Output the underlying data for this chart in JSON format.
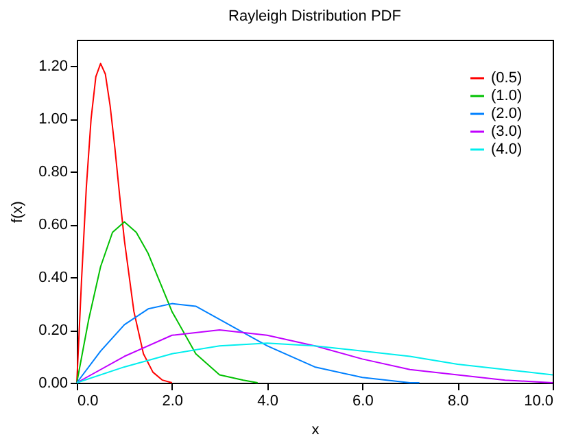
{
  "chart_data": {
    "type": "line",
    "title": "Rayleigh Distribution PDF",
    "xlabel": "x",
    "ylabel": "f(x)",
    "xlim": [
      0,
      10
    ],
    "xticks": [
      {
        "value": 0,
        "label": "0.0"
      },
      {
        "value": 2,
        "label": "2.0"
      },
      {
        "value": 4,
        "label": "4.0"
      },
      {
        "value": 6,
        "label": "6.0"
      },
      {
        "value": 8,
        "label": "8.0"
      },
      {
        "value": 10,
        "label": "10.0"
      }
    ],
    "ylim": [
      0,
      1.3
    ],
    "yticks": [
      {
        "value": 0,
        "label": "0.00"
      },
      {
        "value": 0.2,
        "label": "0.20"
      },
      {
        "value": 0.4,
        "label": "0.40"
      },
      {
        "value": 0.6,
        "label": "0.60"
      },
      {
        "value": 0.8,
        "label": "0.80"
      },
      {
        "value": 1,
        "label": "1.00"
      },
      {
        "value": 1.2,
        "label": "1.20"
      }
    ],
    "legend": "top right",
    "series": [
      {
        "name": "(0.5)",
        "color": "#ff0000",
        "x": [
          0,
          0.1,
          0.2,
          0.3,
          0.4,
          0.5,
          0.6,
          0.7,
          0.8,
          0.9,
          1.0,
          1.2,
          1.4,
          1.6,
          1.8,
          2.0
        ],
        "values": [
          0,
          0.39,
          0.74,
          1.0,
          1.16,
          1.21,
          1.17,
          1.05,
          0.89,
          0.71,
          0.54,
          0.27,
          0.11,
          0.04,
          0.01,
          0
        ]
      },
      {
        "name": "(1.0)",
        "color": "#00c000",
        "x": [
          0,
          0.25,
          0.5,
          0.75,
          1,
          1.25,
          1.5,
          1.75,
          2,
          2.5,
          3,
          3.5,
          3.8
        ],
        "values": [
          0,
          0.24,
          0.44,
          0.57,
          0.61,
          0.57,
          0.49,
          0.38,
          0.27,
          0.11,
          0.03,
          0.01,
          0
        ]
      },
      {
        "name": "(2.0)",
        "color": "#0080ff",
        "x": [
          0,
          0.5,
          1,
          1.5,
          2,
          2.5,
          3,
          3.5,
          4,
          5,
          6,
          7,
          7.2
        ],
        "values": [
          0,
          0.12,
          0.22,
          0.28,
          0.3,
          0.29,
          0.24,
          0.19,
          0.14,
          0.06,
          0.02,
          0,
          0
        ]
      },
      {
        "name": "(3.0)",
        "color": "#c000ff",
        "x": [
          0,
          1,
          2,
          3,
          4,
          5,
          6,
          7,
          8,
          9,
          10
        ],
        "values": [
          0,
          0.1,
          0.18,
          0.2,
          0.18,
          0.14,
          0.09,
          0.05,
          0.03,
          0.01,
          0
        ]
      },
      {
        "name": "(4.0)",
        "color": "#00eeee",
        "x": [
          0,
          1,
          2,
          3,
          4,
          5,
          6,
          7,
          8,
          9,
          10
        ],
        "values": [
          0,
          0.06,
          0.11,
          0.14,
          0.15,
          0.14,
          0.12,
          0.1,
          0.07,
          0.05,
          0.03
        ]
      }
    ]
  }
}
